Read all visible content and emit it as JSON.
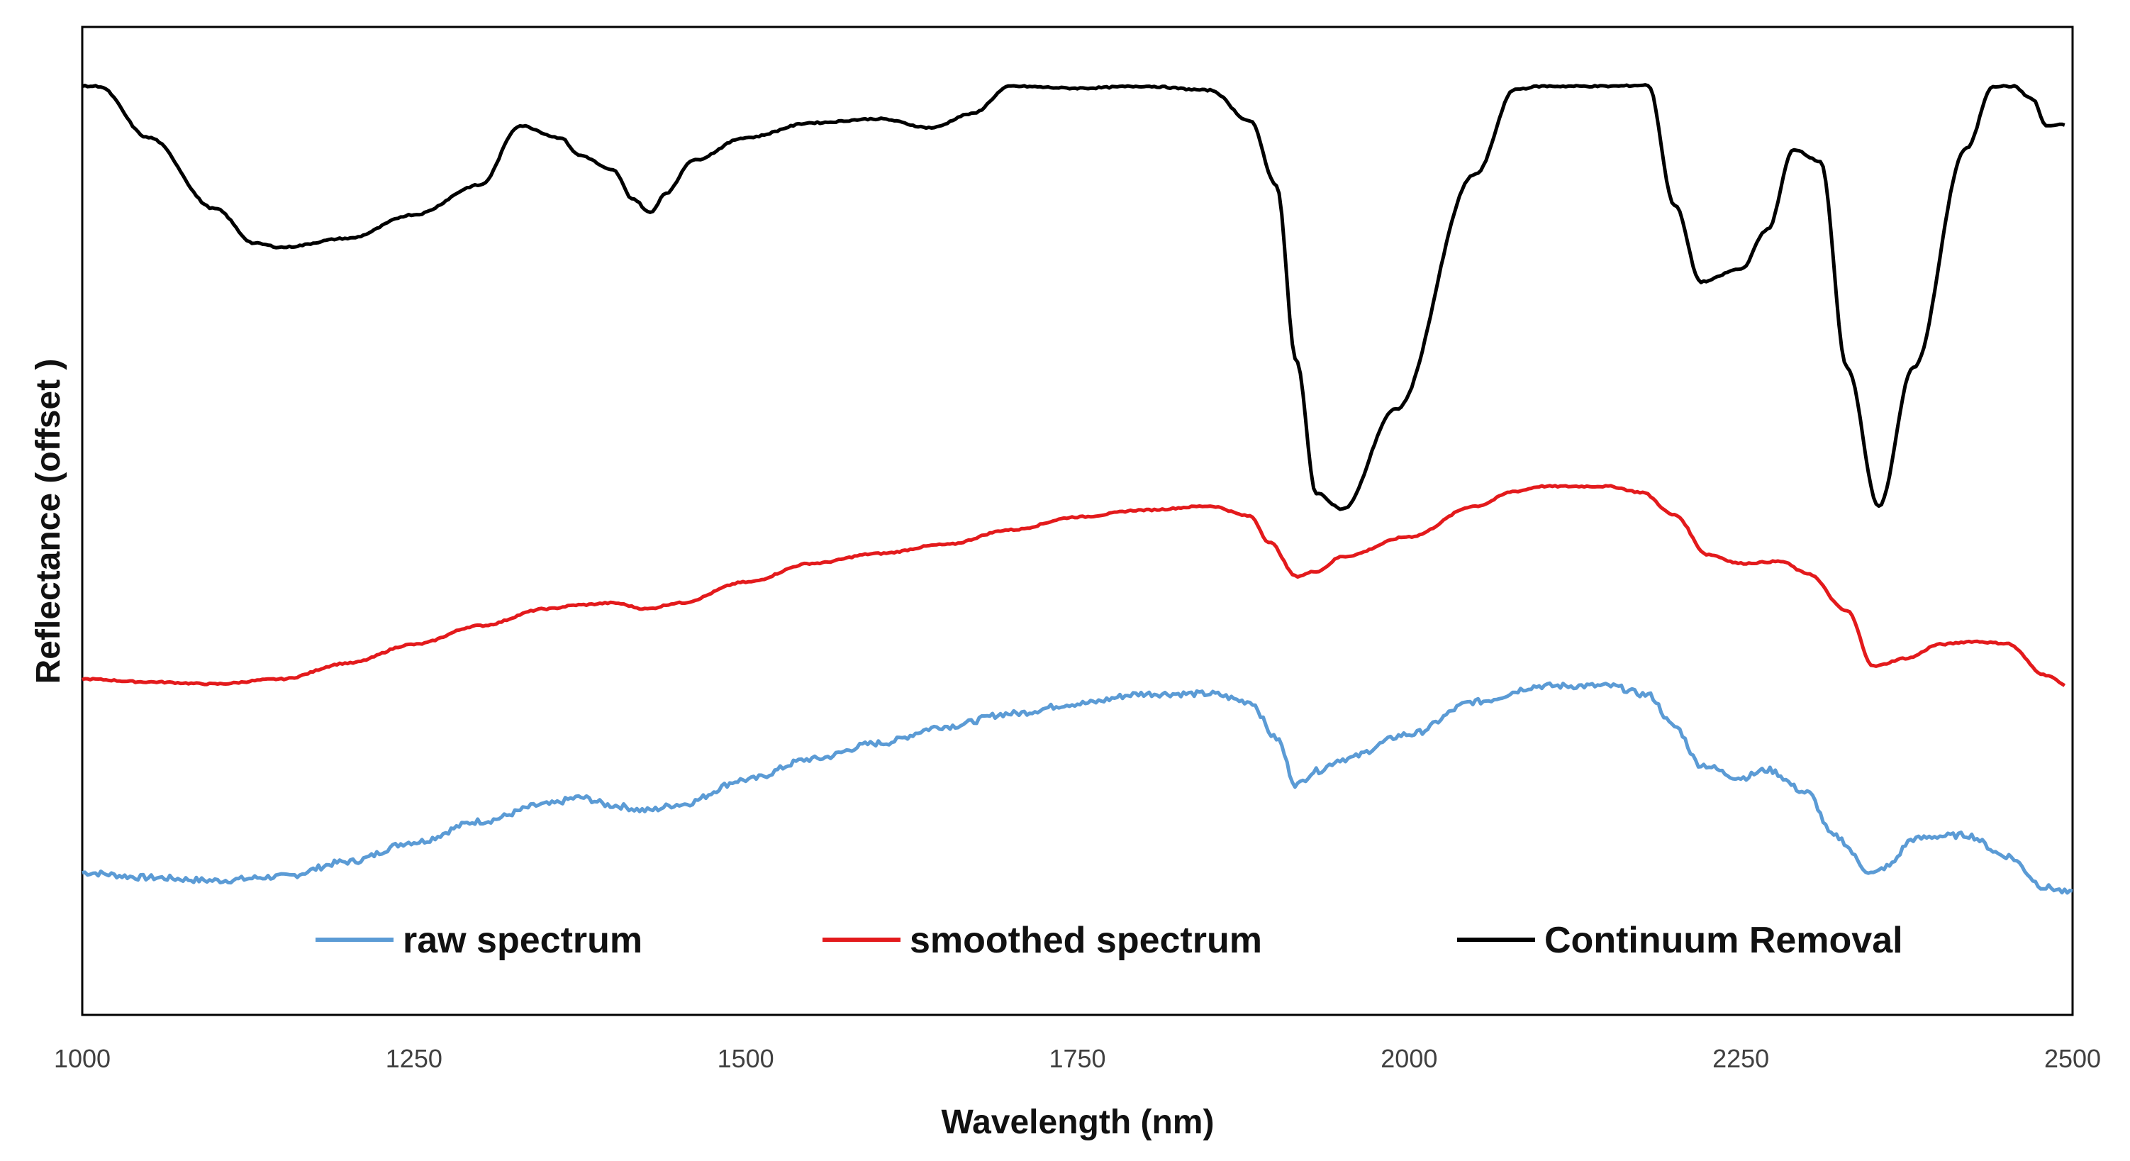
{
  "chart_data": {
    "type": "line",
    "title": "",
    "xlabel": "Wavelength (nm)",
    "ylabel": "Reflectance (offset )",
    "xlim": [
      1000,
      2500
    ],
    "ylim": [
      0,
      1
    ],
    "x_ticks": [
      "1000",
      "1250",
      "1500",
      "1750",
      "2000",
      "2250",
      "2500"
    ],
    "y_ticks_shown": false,
    "grid": false,
    "legend_position": "bottom",
    "series": [
      {
        "name": "raw spectrum",
        "color": "#5b9bd5",
        "noisy": true,
        "x": [
          1000,
          1050,
          1100,
          1150,
          1200,
          1250,
          1300,
          1350,
          1375,
          1400,
          1425,
          1450,
          1500,
          1550,
          1600,
          1650,
          1700,
          1750,
          1800,
          1850,
          1880,
          1900,
          1915,
          1930,
          1950,
          2000,
          2050,
          2100,
          2150,
          2180,
          2200,
          2220,
          2250,
          2270,
          2300,
          2320,
          2350,
          2360,
          2380,
          2400,
          2420,
          2450,
          2480,
          2500
        ],
        "values": [
          0.144,
          0.139,
          0.136,
          0.14,
          0.155,
          0.175,
          0.196,
          0.213,
          0.22,
          0.212,
          0.207,
          0.213,
          0.238,
          0.259,
          0.275,
          0.292,
          0.305,
          0.315,
          0.325,
          0.325,
          0.317,
          0.28,
          0.233,
          0.247,
          0.259,
          0.284,
          0.317,
          0.333,
          0.333,
          0.324,
          0.292,
          0.253,
          0.24,
          0.248,
          0.225,
          0.181,
          0.143,
          0.15,
          0.178,
          0.181,
          0.182,
          0.161,
          0.129,
          0.123
        ]
      },
      {
        "name": "smoothed spectrum",
        "color": "#e31a1c",
        "noisy": false,
        "x": [
          1000,
          1050,
          1100,
          1150,
          1200,
          1250,
          1300,
          1350,
          1375,
          1400,
          1425,
          1450,
          1500,
          1550,
          1600,
          1650,
          1700,
          1750,
          1800,
          1850,
          1880,
          1895,
          1915,
          1930,
          1950,
          2000,
          2050,
          2080,
          2100,
          2150,
          2175,
          2200,
          2225,
          2250,
          2280,
          2300,
          2330,
          2350,
          2375,
          2400,
          2425,
          2450,
          2480,
          2495
        ],
        "values": [
          0.34,
          0.337,
          0.335,
          0.34,
          0.356,
          0.375,
          0.394,
          0.411,
          0.415,
          0.417,
          0.411,
          0.417,
          0.438,
          0.457,
          0.467,
          0.476,
          0.491,
          0.504,
          0.511,
          0.515,
          0.505,
          0.478,
          0.444,
          0.449,
          0.464,
          0.484,
          0.515,
          0.53,
          0.535,
          0.535,
          0.529,
          0.506,
          0.466,
          0.457,
          0.459,
          0.447,
          0.409,
          0.353,
          0.361,
          0.375,
          0.378,
          0.376,
          0.344,
          0.334
        ]
      },
      {
        "name": "Continuum Removal",
        "color": "#000000",
        "noisy": false,
        "x": [
          1000,
          1012,
          1050,
          1100,
          1130,
          1150,
          1200,
          1250,
          1300,
          1330,
          1360,
          1375,
          1400,
          1415,
          1428,
          1440,
          1460,
          1500,
          1550,
          1600,
          1640,
          1670,
          1700,
          1750,
          1800,
          1850,
          1880,
          1900,
          1915,
          1930,
          1950,
          1990,
          2050,
          2080,
          2100,
          2150,
          2180,
          2200,
          2220,
          2250,
          2270,
          2290,
          2310,
          2330,
          2354,
          2380,
          2420,
          2440,
          2455,
          2470,
          2480,
          2495
        ],
        "values": [
          0.94,
          0.94,
          0.888,
          0.816,
          0.781,
          0.777,
          0.786,
          0.81,
          0.84,
          0.9,
          0.888,
          0.87,
          0.855,
          0.826,
          0.812,
          0.832,
          0.865,
          0.888,
          0.903,
          0.907,
          0.898,
          0.912,
          0.94,
          0.938,
          0.94,
          0.936,
          0.905,
          0.84,
          0.662,
          0.528,
          0.512,
          0.613,
          0.851,
          0.937,
          0.94,
          0.94,
          0.941,
          0.82,
          0.742,
          0.755,
          0.795,
          0.876,
          0.864,
          0.655,
          0.515,
          0.655,
          0.877,
          0.94,
          0.94,
          0.927,
          0.9,
          0.901
        ]
      }
    ],
    "legend": [
      {
        "label": "raw spectrum",
        "color": "#5b9bd5"
      },
      {
        "label": "smoothed spectrum",
        "color": "#e31a1c"
      },
      {
        "label": "Continuum Removal",
        "color": "#000000"
      }
    ]
  }
}
